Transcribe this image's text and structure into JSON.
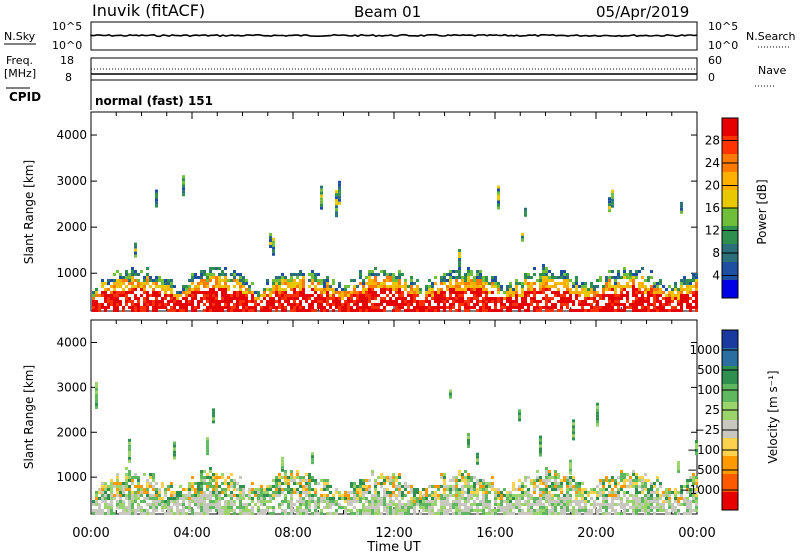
{
  "header": {
    "station": "Inuvik (fitACF)",
    "beam": "Beam 01",
    "date": "05/Apr/2019"
  },
  "strip_labels": {
    "nsky": "N.Sky",
    "nsky_ticks": [
      "10^5",
      "10^0"
    ],
    "nsearch": "N.Search",
    "nsearch_ticks": [
      "10^5",
      "10^0"
    ],
    "freq_label": "Freq.",
    "freq_unit": "[MHz]",
    "freq_ticks": [
      "18",
      "8"
    ],
    "nave": "Nave",
    "nave_ticks": [
      "60",
      "0"
    ],
    "cpid": "CPID",
    "cpid_value": "normal (fast) 151"
  },
  "chart_data": [
    {
      "type": "heatmap",
      "ylabel": "Slant Range [km]",
      "xlabel": "",
      "x_ticks": [
        "00:00",
        "04:00",
        "08:00",
        "12:00",
        "16:00",
        "20:00",
        "00:00"
      ],
      "y_ticks": [
        1000,
        2000,
        3000,
        4000
      ],
      "ylim": [
        180,
        4500
      ],
      "colorbar": {
        "label": "Power [dB]",
        "ticks": [
          28,
          24,
          20,
          16,
          12,
          8,
          4
        ],
        "colors": [
          "#e60000",
          "#ff3300",
          "#ff7a00",
          "#ffb000",
          "#e8c800",
          "#6fbf3a",
          "#2f8f4f",
          "#2a6f7a",
          "#1f4fa0",
          "#0000e6"
        ]
      }
    },
    {
      "type": "heatmap",
      "ylabel": "Slant Range [km]",
      "xlabel": "Time UT",
      "x_ticks": [
        "00:00",
        "04:00",
        "08:00",
        "12:00",
        "16:00",
        "20:00",
        "00:00"
      ],
      "y_ticks": [
        1000,
        2000,
        3000,
        4000
      ],
      "ylim": [
        180,
        4500
      ],
      "colorbar": {
        "label": "Velocity [m s⁻¹]",
        "ticks": [
          "1000",
          "500",
          "100",
          "25",
          "−25",
          "−100",
          "−500",
          "−1000"
        ],
        "colors": [
          "#1a3aa0",
          "#2a6fa0",
          "#2f8f4f",
          "#5fb85f",
          "#9ad46a",
          "#c8c8c0",
          "#ffd24d",
          "#ff9900",
          "#ff5a00",
          "#e60000"
        ]
      }
    }
  ]
}
